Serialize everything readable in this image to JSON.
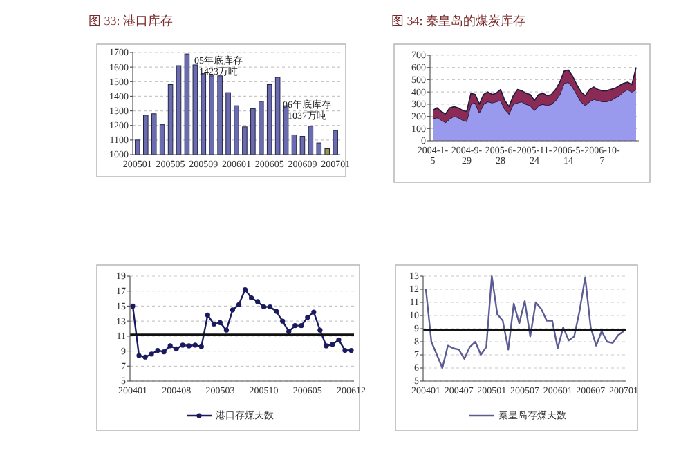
{
  "chart_data": [
    {
      "type": "bar",
      "title": "图 33: 港口库存",
      "categories": [
        "200501",
        null,
        null,
        null,
        "200505",
        null,
        null,
        null,
        "200509",
        null,
        null,
        null,
        "200601",
        null,
        null,
        null,
        "200605",
        null,
        null,
        null,
        "200609",
        null,
        null,
        null,
        "200701"
      ],
      "values": [
        1100,
        1270,
        1280,
        1205,
        1480,
        1610,
        1690,
        1615,
        1555,
        1540,
        1540,
        1425,
        1335,
        1190,
        1315,
        1365,
        1480,
        1530,
        1335,
        1135,
        1125,
        1195,
        1080,
        1040,
        1165
      ],
      "colors": [
        "#6b6bb0",
        "#6b6bb0",
        "#6b6bb0",
        "#6b6bb0",
        "#6b6bb0",
        "#6b6bb0",
        "#6b6bb0",
        "#6b6bb0",
        "#6b6bb0",
        "#6b6bb0",
        "#6b6bb0",
        "#6b6bb0",
        "#6b6bb0",
        "#6b6bb0",
        "#6b6bb0",
        "#6b6bb0",
        "#6b6bb0",
        "#6b6bb0",
        "#6b6bb0",
        "#6b6bb0",
        "#6b6bb0",
        "#6b6bb0",
        "#6b6bb0",
        "#9a9a40",
        "#6b6bb0"
      ],
      "ylim": [
        1000,
        1700
      ],
      "yticks": [
        1000,
        1100,
        1200,
        1300,
        1400,
        1500,
        1600,
        1700
      ],
      "grid": "y",
      "annotations": [
        "05年底库存\n1423万吨",
        "06年底库存\n1037万吨"
      ]
    },
    {
      "type": "area",
      "stacked": true,
      "title": "图 34: 秦皇岛的煤炭库存",
      "categories": [
        "2004-1-5",
        null,
        null,
        null,
        null,
        null,
        null,
        null,
        "2004-9-29",
        null,
        null,
        null,
        null,
        null,
        null,
        null,
        "2005-6-28",
        null,
        null,
        null,
        null,
        null,
        null,
        null,
        "2005-11-24",
        null,
        null,
        null,
        null,
        null,
        null,
        null,
        "2006-5-14",
        null,
        null,
        null,
        null,
        null,
        null,
        null,
        "2006-10-7",
        null,
        null,
        null,
        null,
        null,
        null,
        null,
        null
      ],
      "series": [
        {
          "color": "#9999ee",
          "values": [
            180,
            190,
            170,
            150,
            180,
            200,
            190,
            170,
            160,
            300,
            310,
            230,
            300,
            320,
            310,
            320,
            330,
            260,
            220,
            300,
            310,
            320,
            300,
            290,
            250,
            290,
            300,
            290,
            300,
            330,
            380,
            470,
            480,
            440,
            380,
            320,
            290,
            320,
            340,
            330,
            320,
            320,
            330,
            350,
            370,
            400,
            420,
            400,
            420
          ]
        },
        {
          "color": "#8b2a55",
          "values": [
            70,
            80,
            70,
            70,
            90,
            80,
            80,
            80,
            80,
            90,
            70,
            70,
            80,
            80,
            70,
            70,
            90,
            70,
            60,
            70,
            110,
            90,
            90,
            90,
            80,
            90,
            90,
            80,
            80,
            90,
            100,
            100,
            100,
            90,
            80,
            80,
            80,
            100,
            100,
            90,
            90,
            90,
            90,
            80,
            80,
            70,
            60,
            60,
            180
          ]
        }
      ],
      "ylim": [
        0,
        700
      ],
      "yticks": [
        0,
        100,
        200,
        300,
        400,
        500,
        600,
        700
      ],
      "grid": "y"
    },
    {
      "type": "line",
      "categories": [
        "200401",
        null,
        null,
        null,
        null,
        null,
        null,
        "200408",
        null,
        null,
        null,
        null,
        null,
        null,
        "200503",
        null,
        null,
        null,
        null,
        null,
        null,
        "200510",
        null,
        null,
        null,
        null,
        null,
        null,
        "200605",
        null,
        null,
        null,
        null,
        null,
        null,
        "200612"
      ],
      "series": [
        {
          "name": "港口存煤天数",
          "color": "#1a1a5e",
          "values": [
            15,
            8.4,
            8.2,
            8.6,
            9.1,
            8.9,
            9.7,
            9.3,
            9.8,
            9.7,
            9.8,
            9.6,
            13.8,
            12.6,
            12.8,
            11.8,
            14.5,
            15.2,
            17.2,
            16.1,
            15.6,
            14.9,
            14.9,
            14.3,
            13.0,
            11.6,
            12.4,
            12.4,
            13.5,
            14.2,
            11.8,
            9.7,
            9.9,
            10.5,
            9.1,
            9.1
          ]
        }
      ],
      "marker": "circle",
      "ylim": [
        5,
        19
      ],
      "yticks": [
        5,
        7,
        9,
        11,
        13,
        15,
        17,
        19
      ],
      "grid": "y",
      "legend": "bottom",
      "ref_lines": [
        {
          "axis": "y",
          "value": 11.2,
          "color": "#111111"
        }
      ]
    },
    {
      "type": "line",
      "categories": [
        "200401",
        null,
        null,
        null,
        null,
        null,
        "200407",
        null,
        null,
        null,
        null,
        null,
        "200501",
        null,
        null,
        null,
        null,
        null,
        "200507",
        null,
        null,
        null,
        null,
        null,
        "200601",
        null,
        null,
        null,
        null,
        null,
        "200607",
        null,
        null,
        null,
        null,
        null,
        "200701"
      ],
      "series": [
        {
          "name": "秦皇岛存煤天数",
          "color": "#5c5c94",
          "values": [
            12,
            8,
            7,
            6,
            7.7,
            7.5,
            7.4,
            6.7,
            7.6,
            8.0,
            7.0,
            7.6,
            13.0,
            10.1,
            9.6,
            7.4,
            10.9,
            9.4,
            11.1,
            8.4,
            11.0,
            10.5,
            9.6,
            9.6,
            7.5,
            9.1,
            8.1,
            8.4,
            10.4,
            12.9,
            9.1,
            7.7,
            8.8,
            8.0,
            7.9,
            8.5,
            8.8
          ]
        }
      ],
      "ylim": [
        5,
        13
      ],
      "yticks": [
        5,
        6,
        7,
        8,
        9,
        10,
        11,
        12,
        13
      ],
      "grid": "y",
      "legend": "bottom",
      "ref_lines": [
        {
          "axis": "y",
          "value": 8.9,
          "color": "#111111"
        }
      ]
    }
  ]
}
